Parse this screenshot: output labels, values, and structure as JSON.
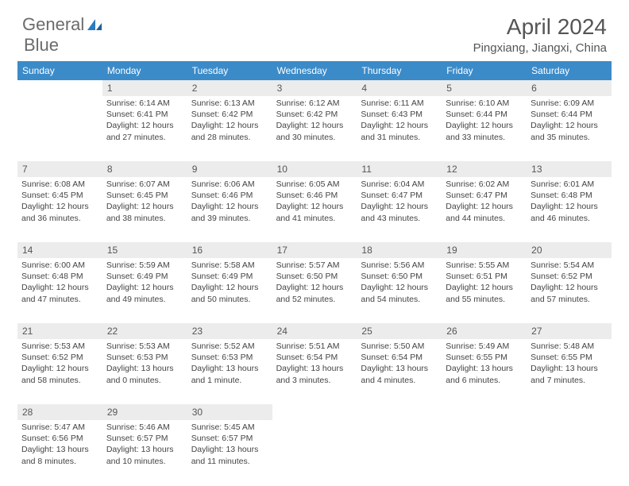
{
  "logo": {
    "word1": "General",
    "word2": "Blue"
  },
  "title": "April 2024",
  "location": "Pingxiang, Jiangxi, China",
  "colors": {
    "header_bg": "#3b8bc9",
    "header_text": "#ffffff",
    "day_bg": "#ececec",
    "text": "#444444",
    "logo_gray": "#6b6b6b",
    "logo_blue": "#2b7bbf"
  },
  "day_names": [
    "Sunday",
    "Monday",
    "Tuesday",
    "Wednesday",
    "Thursday",
    "Friday",
    "Saturday"
  ],
  "weeks": [
    {
      "nums": [
        "",
        "1",
        "2",
        "3",
        "4",
        "5",
        "6"
      ],
      "cells": [
        null,
        {
          "sr": "Sunrise: 6:14 AM",
          "ss": "Sunset: 6:41 PM",
          "dl1": "Daylight: 12 hours",
          "dl2": "and 27 minutes."
        },
        {
          "sr": "Sunrise: 6:13 AM",
          "ss": "Sunset: 6:42 PM",
          "dl1": "Daylight: 12 hours",
          "dl2": "and 28 minutes."
        },
        {
          "sr": "Sunrise: 6:12 AM",
          "ss": "Sunset: 6:42 PM",
          "dl1": "Daylight: 12 hours",
          "dl2": "and 30 minutes."
        },
        {
          "sr": "Sunrise: 6:11 AM",
          "ss": "Sunset: 6:43 PM",
          "dl1": "Daylight: 12 hours",
          "dl2": "and 31 minutes."
        },
        {
          "sr": "Sunrise: 6:10 AM",
          "ss": "Sunset: 6:44 PM",
          "dl1": "Daylight: 12 hours",
          "dl2": "and 33 minutes."
        },
        {
          "sr": "Sunrise: 6:09 AM",
          "ss": "Sunset: 6:44 PM",
          "dl1": "Daylight: 12 hours",
          "dl2": "and 35 minutes."
        }
      ]
    },
    {
      "nums": [
        "7",
        "8",
        "9",
        "10",
        "11",
        "12",
        "13"
      ],
      "cells": [
        {
          "sr": "Sunrise: 6:08 AM",
          "ss": "Sunset: 6:45 PM",
          "dl1": "Daylight: 12 hours",
          "dl2": "and 36 minutes."
        },
        {
          "sr": "Sunrise: 6:07 AM",
          "ss": "Sunset: 6:45 PM",
          "dl1": "Daylight: 12 hours",
          "dl2": "and 38 minutes."
        },
        {
          "sr": "Sunrise: 6:06 AM",
          "ss": "Sunset: 6:46 PM",
          "dl1": "Daylight: 12 hours",
          "dl2": "and 39 minutes."
        },
        {
          "sr": "Sunrise: 6:05 AM",
          "ss": "Sunset: 6:46 PM",
          "dl1": "Daylight: 12 hours",
          "dl2": "and 41 minutes."
        },
        {
          "sr": "Sunrise: 6:04 AM",
          "ss": "Sunset: 6:47 PM",
          "dl1": "Daylight: 12 hours",
          "dl2": "and 43 minutes."
        },
        {
          "sr": "Sunrise: 6:02 AM",
          "ss": "Sunset: 6:47 PM",
          "dl1": "Daylight: 12 hours",
          "dl2": "and 44 minutes."
        },
        {
          "sr": "Sunrise: 6:01 AM",
          "ss": "Sunset: 6:48 PM",
          "dl1": "Daylight: 12 hours",
          "dl2": "and 46 minutes."
        }
      ]
    },
    {
      "nums": [
        "14",
        "15",
        "16",
        "17",
        "18",
        "19",
        "20"
      ],
      "cells": [
        {
          "sr": "Sunrise: 6:00 AM",
          "ss": "Sunset: 6:48 PM",
          "dl1": "Daylight: 12 hours",
          "dl2": "and 47 minutes."
        },
        {
          "sr": "Sunrise: 5:59 AM",
          "ss": "Sunset: 6:49 PM",
          "dl1": "Daylight: 12 hours",
          "dl2": "and 49 minutes."
        },
        {
          "sr": "Sunrise: 5:58 AM",
          "ss": "Sunset: 6:49 PM",
          "dl1": "Daylight: 12 hours",
          "dl2": "and 50 minutes."
        },
        {
          "sr": "Sunrise: 5:57 AM",
          "ss": "Sunset: 6:50 PM",
          "dl1": "Daylight: 12 hours",
          "dl2": "and 52 minutes."
        },
        {
          "sr": "Sunrise: 5:56 AM",
          "ss": "Sunset: 6:50 PM",
          "dl1": "Daylight: 12 hours",
          "dl2": "and 54 minutes."
        },
        {
          "sr": "Sunrise: 5:55 AM",
          "ss": "Sunset: 6:51 PM",
          "dl1": "Daylight: 12 hours",
          "dl2": "and 55 minutes."
        },
        {
          "sr": "Sunrise: 5:54 AM",
          "ss": "Sunset: 6:52 PM",
          "dl1": "Daylight: 12 hours",
          "dl2": "and 57 minutes."
        }
      ]
    },
    {
      "nums": [
        "21",
        "22",
        "23",
        "24",
        "25",
        "26",
        "27"
      ],
      "cells": [
        {
          "sr": "Sunrise: 5:53 AM",
          "ss": "Sunset: 6:52 PM",
          "dl1": "Daylight: 12 hours",
          "dl2": "and 58 minutes."
        },
        {
          "sr": "Sunrise: 5:53 AM",
          "ss": "Sunset: 6:53 PM",
          "dl1": "Daylight: 13 hours",
          "dl2": "and 0 minutes."
        },
        {
          "sr": "Sunrise: 5:52 AM",
          "ss": "Sunset: 6:53 PM",
          "dl1": "Daylight: 13 hours",
          "dl2": "and 1 minute."
        },
        {
          "sr": "Sunrise: 5:51 AM",
          "ss": "Sunset: 6:54 PM",
          "dl1": "Daylight: 13 hours",
          "dl2": "and 3 minutes."
        },
        {
          "sr": "Sunrise: 5:50 AM",
          "ss": "Sunset: 6:54 PM",
          "dl1": "Daylight: 13 hours",
          "dl2": "and 4 minutes."
        },
        {
          "sr": "Sunrise: 5:49 AM",
          "ss": "Sunset: 6:55 PM",
          "dl1": "Daylight: 13 hours",
          "dl2": "and 6 minutes."
        },
        {
          "sr": "Sunrise: 5:48 AM",
          "ss": "Sunset: 6:55 PM",
          "dl1": "Daylight: 13 hours",
          "dl2": "and 7 minutes."
        }
      ]
    },
    {
      "nums": [
        "28",
        "29",
        "30",
        "",
        "",
        "",
        ""
      ],
      "cells": [
        {
          "sr": "Sunrise: 5:47 AM",
          "ss": "Sunset: 6:56 PM",
          "dl1": "Daylight: 13 hours",
          "dl2": "and 8 minutes."
        },
        {
          "sr": "Sunrise: 5:46 AM",
          "ss": "Sunset: 6:57 PM",
          "dl1": "Daylight: 13 hours",
          "dl2": "and 10 minutes."
        },
        {
          "sr": "Sunrise: 5:45 AM",
          "ss": "Sunset: 6:57 PM",
          "dl1": "Daylight: 13 hours",
          "dl2": "and 11 minutes."
        },
        null,
        null,
        null,
        null
      ]
    }
  ]
}
